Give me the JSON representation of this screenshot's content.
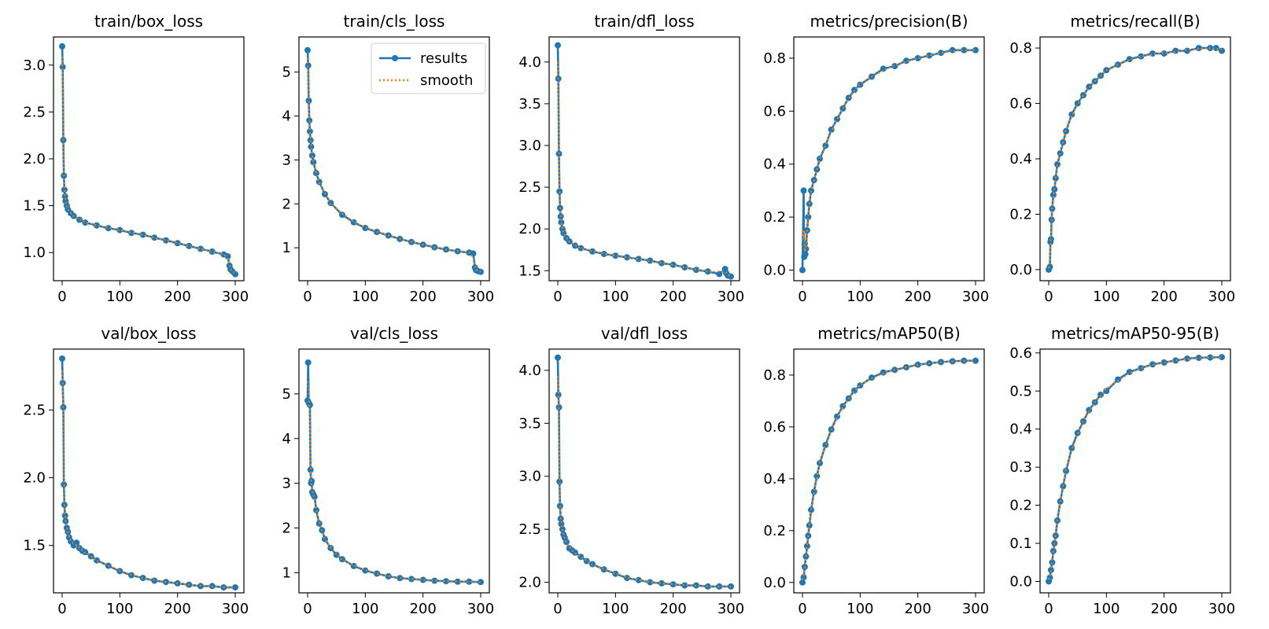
{
  "legend": {
    "results_label": "results",
    "smooth_label": "smooth",
    "placement": "upper-right of train/cls_loss panel"
  },
  "colors": {
    "results": "#1f77b4",
    "smooth": "#ff7f0e",
    "axis": "#000000",
    "background": "#ffffff"
  },
  "chart_data": [
    {
      "type": "line",
      "title": "train/box_loss",
      "xlim": [
        -15,
        315
      ],
      "ylim": [
        0.7,
        3.3
      ],
      "xticks": [
        0,
        100,
        200,
        300
      ],
      "yticks": [
        1.0,
        1.5,
        2.0,
        2.5,
        3.0
      ],
      "ytick_labels": [
        "1.0",
        "1.5",
        "2.0",
        "2.5",
        "3.0"
      ],
      "xtick_labels": [
        "0",
        "100",
        "200",
        "300"
      ],
      "series": [
        {
          "name": "results",
          "x": [
            0,
            1,
            2,
            3,
            4,
            5,
            6,
            8,
            10,
            15,
            20,
            30,
            40,
            60,
            80,
            100,
            120,
            140,
            160,
            180,
            200,
            220,
            240,
            260,
            280,
            287,
            290,
            292,
            295,
            300
          ],
          "y": [
            3.2,
            2.98,
            2.2,
            1.82,
            1.67,
            1.6,
            1.55,
            1.5,
            1.46,
            1.42,
            1.39,
            1.35,
            1.32,
            1.29,
            1.26,
            1.24,
            1.21,
            1.19,
            1.16,
            1.13,
            1.1,
            1.07,
            1.04,
            1.01,
            0.98,
            0.96,
            0.86,
            0.82,
            0.8,
            0.77
          ]
        }
      ]
    },
    {
      "type": "line",
      "title": "train/cls_loss",
      "xlim": [
        -15,
        315
      ],
      "ylim": [
        0.25,
        5.8
      ],
      "xticks": [
        0,
        100,
        200,
        300
      ],
      "yticks": [
        1,
        2,
        3,
        4,
        5
      ],
      "ytick_labels": [
        "1",
        "2",
        "3",
        "4",
        "5"
      ],
      "xtick_labels": [
        "0",
        "100",
        "200",
        "300"
      ],
      "legend": true,
      "series": [
        {
          "name": "results",
          "x": [
            0,
            1,
            2,
            3,
            4,
            5,
            6,
            8,
            10,
            15,
            20,
            30,
            40,
            60,
            80,
            100,
            120,
            140,
            160,
            180,
            200,
            220,
            240,
            260,
            280,
            287,
            290,
            292,
            295,
            300
          ],
          "y": [
            5.5,
            5.15,
            4.35,
            3.9,
            3.65,
            3.45,
            3.3,
            3.1,
            2.95,
            2.7,
            2.5,
            2.22,
            2.02,
            1.75,
            1.58,
            1.45,
            1.36,
            1.28,
            1.2,
            1.13,
            1.07,
            1.01,
            0.96,
            0.92,
            0.89,
            0.87,
            0.55,
            0.49,
            0.47,
            0.45
          ]
        }
      ]
    },
    {
      "type": "line",
      "title": "train/dfl_loss",
      "xlim": [
        -15,
        315
      ],
      "ylim": [
        1.38,
        4.3
      ],
      "xticks": [
        0,
        100,
        200,
        300
      ],
      "yticks": [
        1.5,
        2.0,
        2.5,
        3.0,
        3.5,
        4.0
      ],
      "ytick_labels": [
        "1.5",
        "2.0",
        "2.5",
        "3.0",
        "3.5",
        "4.0"
      ],
      "xtick_labels": [
        "0",
        "100",
        "200",
        "300"
      ],
      "series": [
        {
          "name": "results",
          "x": [
            0,
            1,
            2,
            3,
            4,
            5,
            6,
            8,
            10,
            15,
            20,
            30,
            40,
            60,
            80,
            100,
            120,
            140,
            160,
            180,
            200,
            220,
            240,
            260,
            280,
            290,
            292,
            295,
            300
          ],
          "y": [
            4.2,
            3.8,
            2.9,
            2.45,
            2.25,
            2.15,
            2.08,
            2.0,
            1.95,
            1.89,
            1.85,
            1.8,
            1.77,
            1.73,
            1.7,
            1.68,
            1.66,
            1.64,
            1.62,
            1.59,
            1.57,
            1.54,
            1.51,
            1.49,
            1.46,
            1.52,
            1.47,
            1.44,
            1.43
          ]
        }
      ]
    },
    {
      "type": "line",
      "title": "metrics/precision(B)",
      "xlim": [
        -15,
        315
      ],
      "ylim": [
        -0.04,
        0.88
      ],
      "xticks": [
        0,
        100,
        200,
        300
      ],
      "yticks": [
        0.0,
        0.2,
        0.4,
        0.6,
        0.8
      ],
      "ytick_labels": [
        "0.0",
        "0.2",
        "0.4",
        "0.6",
        "0.8"
      ],
      "xtick_labels": [
        "0",
        "100",
        "200",
        "300"
      ],
      "series": [
        {
          "name": "results",
          "x": [
            0,
            2,
            3,
            4,
            5,
            6,
            8,
            10,
            12,
            15,
            20,
            25,
            30,
            40,
            50,
            60,
            70,
            80,
            90,
            100,
            120,
            140,
            160,
            180,
            200,
            220,
            240,
            260,
            280,
            300
          ],
          "y": [
            0.0,
            0.3,
            0.05,
            0.1,
            0.06,
            0.08,
            0.15,
            0.2,
            0.25,
            0.3,
            0.34,
            0.38,
            0.42,
            0.47,
            0.53,
            0.57,
            0.61,
            0.65,
            0.68,
            0.7,
            0.73,
            0.76,
            0.77,
            0.79,
            0.8,
            0.81,
            0.82,
            0.83,
            0.83,
            0.83
          ]
        }
      ]
    },
    {
      "type": "line",
      "title": "metrics/recall(B)",
      "xlim": [
        -15,
        315
      ],
      "ylim": [
        -0.04,
        0.84
      ],
      "xticks": [
        0,
        100,
        200,
        300
      ],
      "yticks": [
        0.0,
        0.2,
        0.4,
        0.6,
        0.8
      ],
      "ytick_labels": [
        "0.0",
        "0.2",
        "0.4",
        "0.6",
        "0.8"
      ],
      "xtick_labels": [
        "0",
        "100",
        "200",
        "300"
      ],
      "series": [
        {
          "name": "results",
          "x": [
            0,
            2,
            3,
            4,
            5,
            6,
            8,
            10,
            12,
            15,
            20,
            25,
            30,
            40,
            50,
            60,
            70,
            80,
            90,
            100,
            120,
            140,
            160,
            180,
            200,
            220,
            240,
            260,
            280,
            290,
            300
          ],
          "y": [
            0.0,
            0.01,
            0.1,
            0.11,
            0.18,
            0.22,
            0.27,
            0.29,
            0.33,
            0.38,
            0.42,
            0.46,
            0.5,
            0.56,
            0.6,
            0.63,
            0.66,
            0.68,
            0.7,
            0.72,
            0.74,
            0.76,
            0.77,
            0.78,
            0.78,
            0.79,
            0.79,
            0.8,
            0.8,
            0.8,
            0.79
          ]
        }
      ]
    },
    {
      "type": "line",
      "title": "val/box_loss",
      "xlim": [
        -15,
        315
      ],
      "ylim": [
        1.15,
        2.95
      ],
      "xticks": [
        0,
        100,
        200,
        300
      ],
      "yticks": [
        1.5,
        2.0,
        2.5
      ],
      "ytick_labels": [
        "1.5",
        "2.0",
        "2.5"
      ],
      "xtick_labels": [
        "0",
        "100",
        "200",
        "300"
      ],
      "series": [
        {
          "name": "results",
          "x": [
            0,
            1,
            2,
            3,
            4,
            5,
            6,
            8,
            10,
            12,
            15,
            20,
            25,
            30,
            35,
            40,
            50,
            60,
            80,
            100,
            120,
            140,
            160,
            180,
            200,
            220,
            240,
            260,
            280,
            300
          ],
          "y": [
            2.88,
            2.7,
            2.52,
            1.95,
            1.8,
            1.72,
            1.68,
            1.63,
            1.6,
            1.56,
            1.53,
            1.5,
            1.52,
            1.48,
            1.46,
            1.45,
            1.42,
            1.39,
            1.35,
            1.31,
            1.28,
            1.26,
            1.24,
            1.23,
            1.22,
            1.21,
            1.2,
            1.2,
            1.19,
            1.19
          ]
        }
      ]
    },
    {
      "type": "line",
      "title": "val/cls_loss",
      "xlim": [
        -15,
        315
      ],
      "ylim": [
        0.55,
        6.0
      ],
      "xticks": [
        0,
        100,
        200,
        300
      ],
      "yticks": [
        1,
        2,
        3,
        4,
        5
      ],
      "ytick_labels": [
        "1",
        "2",
        "3",
        "4",
        "5"
      ],
      "xtick_labels": [
        "0",
        "100",
        "200",
        "300"
      ],
      "series": [
        {
          "name": "results",
          "x": [
            0,
            1,
            2,
            4,
            5,
            6,
            7,
            8,
            10,
            12,
            15,
            20,
            25,
            30,
            40,
            50,
            60,
            80,
            100,
            120,
            140,
            160,
            180,
            200,
            220,
            240,
            260,
            280,
            300
          ],
          "y": [
            4.85,
            5.7,
            4.8,
            4.75,
            3.3,
            3.0,
            3.05,
            2.8,
            2.75,
            2.7,
            2.4,
            2.1,
            1.95,
            1.75,
            1.55,
            1.4,
            1.3,
            1.15,
            1.05,
            0.98,
            0.92,
            0.88,
            0.86,
            0.84,
            0.82,
            0.81,
            0.8,
            0.8,
            0.79
          ]
        }
      ]
    },
    {
      "type": "line",
      "title": "val/dfl_loss",
      "xlim": [
        -15,
        315
      ],
      "ylim": [
        1.9,
        4.2
      ],
      "xticks": [
        0,
        100,
        200,
        300
      ],
      "yticks": [
        2.0,
        2.5,
        3.0,
        3.5,
        4.0
      ],
      "ytick_labels": [
        "2.0",
        "2.5",
        "3.0",
        "3.5",
        "4.0"
      ],
      "xtick_labels": [
        "0",
        "100",
        "200",
        "300"
      ],
      "series": [
        {
          "name": "results",
          "x": [
            0,
            1,
            2,
            3,
            4,
            5,
            6,
            8,
            10,
            12,
            15,
            20,
            25,
            30,
            40,
            50,
            60,
            80,
            100,
            120,
            140,
            160,
            180,
            200,
            220,
            240,
            260,
            280,
            300
          ],
          "y": [
            4.12,
            3.77,
            3.65,
            2.95,
            2.72,
            2.6,
            2.55,
            2.5,
            2.45,
            2.42,
            2.38,
            2.32,
            2.3,
            2.28,
            2.24,
            2.2,
            2.17,
            2.12,
            2.08,
            2.04,
            2.02,
            2.0,
            1.99,
            1.98,
            1.97,
            1.97,
            1.96,
            1.96,
            1.96
          ]
        }
      ]
    },
    {
      "type": "line",
      "title": "metrics/mAP50(B)",
      "xlim": [
        -15,
        315
      ],
      "ylim": [
        -0.04,
        0.9
      ],
      "xticks": [
        0,
        100,
        200,
        300
      ],
      "yticks": [
        0.0,
        0.2,
        0.4,
        0.6,
        0.8
      ],
      "ytick_labels": [
        "0.0",
        "0.2",
        "0.4",
        "0.6",
        "0.8"
      ],
      "xtick_labels": [
        "0",
        "100",
        "200",
        "300"
      ],
      "series": [
        {
          "name": "results",
          "x": [
            0,
            2,
            4,
            6,
            8,
            10,
            12,
            15,
            20,
            25,
            30,
            40,
            50,
            60,
            70,
            80,
            90,
            100,
            120,
            140,
            160,
            180,
            200,
            220,
            240,
            260,
            280,
            300
          ],
          "y": [
            0.0,
            0.02,
            0.06,
            0.1,
            0.14,
            0.18,
            0.22,
            0.28,
            0.35,
            0.41,
            0.46,
            0.53,
            0.59,
            0.64,
            0.68,
            0.71,
            0.74,
            0.76,
            0.79,
            0.81,
            0.82,
            0.83,
            0.84,
            0.845,
            0.85,
            0.853,
            0.855,
            0.855
          ]
        }
      ]
    },
    {
      "type": "line",
      "title": "metrics/mAP50-95(B)",
      "xlim": [
        -15,
        315
      ],
      "ylim": [
        -0.03,
        0.61
      ],
      "xticks": [
        0,
        100,
        200,
        300
      ],
      "yticks": [
        0.0,
        0.1,
        0.2,
        0.3,
        0.4,
        0.5,
        0.6
      ],
      "ytick_labels": [
        "0.0",
        "0.1",
        "0.2",
        "0.3",
        "0.4",
        "0.5",
        "0.6"
      ],
      "xtick_labels": [
        "0",
        "100",
        "200",
        "300"
      ],
      "series": [
        {
          "name": "results",
          "x": [
            0,
            2,
            4,
            6,
            8,
            10,
            12,
            15,
            20,
            25,
            30,
            40,
            50,
            60,
            70,
            80,
            90,
            100,
            120,
            140,
            160,
            180,
            200,
            220,
            240,
            260,
            280,
            300
          ],
          "y": [
            0.0,
            0.01,
            0.03,
            0.05,
            0.08,
            0.1,
            0.12,
            0.16,
            0.21,
            0.25,
            0.29,
            0.35,
            0.39,
            0.42,
            0.45,
            0.47,
            0.49,
            0.5,
            0.53,
            0.55,
            0.56,
            0.57,
            0.575,
            0.58,
            0.585,
            0.587,
            0.588,
            0.589
          ]
        }
      ]
    }
  ]
}
